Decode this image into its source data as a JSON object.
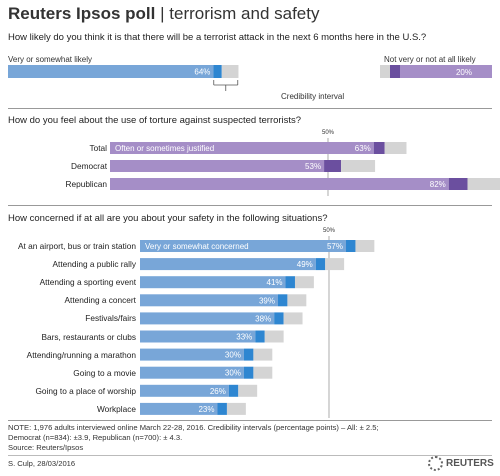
{
  "header": {
    "brand": "Reuters Ipsos poll",
    "separator": "|",
    "subtitle": "terrorism and safety"
  },
  "colors": {
    "blue": "#78a6d8",
    "blue_dark": "#2e86d1",
    "purple": "#a58ec7",
    "purple_dark": "#6b4f9f",
    "ci": "#d4d4d4",
    "ref": "#888888"
  },
  "chart_data": [
    {
      "type": "bar",
      "question": "How likely do you think it is that there will be a terrorist attack in the next 6 months here in the U.S.?",
      "categories": [
        "Very or somewhat likely",
        "Not very or not at all likely"
      ],
      "values": [
        64,
        20
      ],
      "value_labels": [
        "64%",
        "20%"
      ],
      "credibility_interval": 2.5,
      "annotation": "Credibility interval",
      "xlim": [
        0,
        100
      ]
    },
    {
      "type": "bar",
      "question": "How do you feel about the use of torture against suspected terrorists?",
      "series_label": "Often or sometimes justified",
      "reference_line": 50,
      "reference_label": "50%",
      "categories": [
        "Total",
        "Democrat",
        "Republican"
      ],
      "values": [
        63,
        53,
        82
      ],
      "value_labels": [
        "63%",
        "53%",
        "82%"
      ],
      "credibility_intervals": [
        2.5,
        3.9,
        4.3
      ],
      "xlim": [
        0,
        100
      ]
    },
    {
      "type": "bar",
      "question": "How concerned if at all are you about your safety in the following situations?",
      "series_label": "Very or somewhat concerned",
      "reference_line": 50,
      "reference_label": "50%",
      "categories": [
        "At an airport, bus or train station",
        "Attending a public rally",
        "Attending a sporting event",
        "Attending a concert",
        "Festivals/fairs",
        "Bars, restaurants or clubs",
        "Attending/running a marathon",
        "Going to a movie",
        "Going to a place of worship",
        "Workplace"
      ],
      "values": [
        57,
        49,
        41,
        39,
        38,
        33,
        30,
        30,
        26,
        23
      ],
      "value_labels": [
        "57%",
        "49%",
        "41%",
        "39%",
        "38%",
        "33%",
        "30%",
        "30%",
        "26%",
        "23%"
      ],
      "credibility_interval": 2.5,
      "xlim": [
        0,
        100
      ]
    }
  ],
  "notes": {
    "line1": "NOTE: 1,976 adults interviewed online March 22-28, 2016. Credibility intervals (percentage points) – All: ± 2.5;",
    "line2": "Democrat (n=834): ±3.9, Republican (n=700): ± 4.3.",
    "source": "Source:  Reuters/Ipsos",
    "credit": "S. Culp,  28/03/2016",
    "logo": "REUTERS"
  }
}
